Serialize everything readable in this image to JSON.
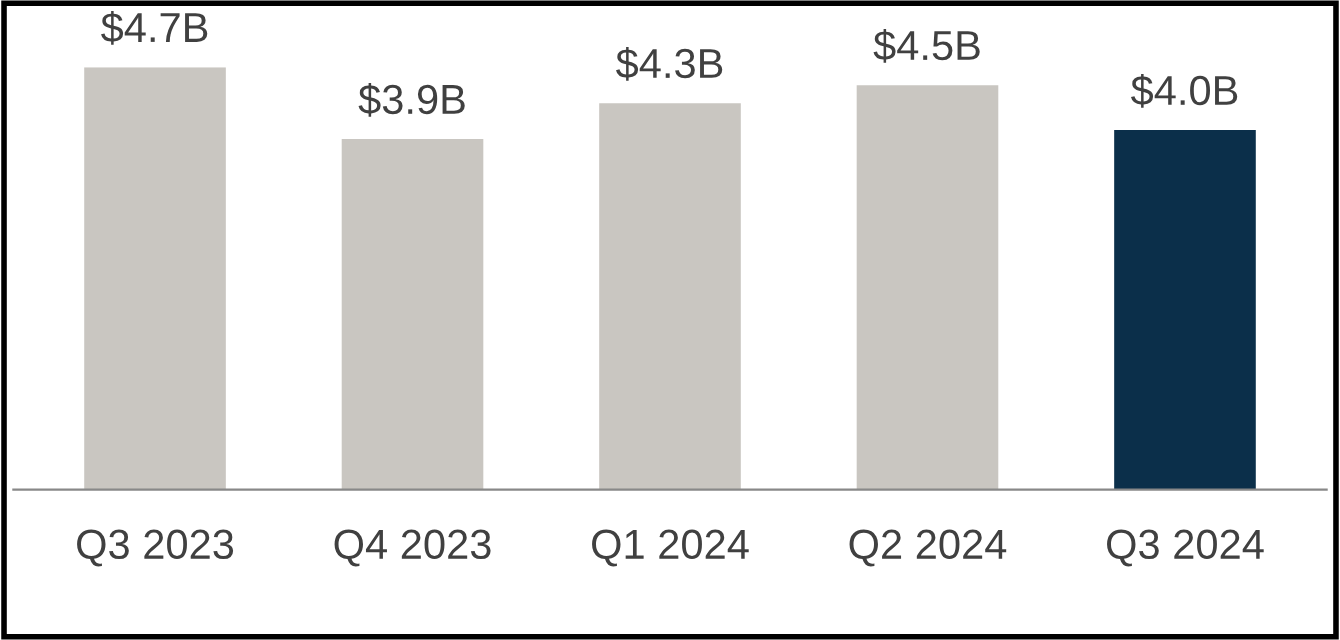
{
  "chart_data": {
    "type": "bar",
    "categories": [
      "Q3 2023",
      "Q4 2023",
      "Q1 2024",
      "Q2 2024",
      "Q3 2024"
    ],
    "values": [
      4.7,
      3.9,
      4.3,
      4.5,
      4.0
    ],
    "value_labels": [
      "$4.7B",
      "$3.9B",
      "$4.3B",
      "$4.5B",
      "$4.0B"
    ],
    "colors": [
      "#c9c6c1",
      "#c9c6c1",
      "#c9c6c1",
      "#c9c6c1",
      "#0b2f4a"
    ],
    "grid": false,
    "legend": false
  }
}
